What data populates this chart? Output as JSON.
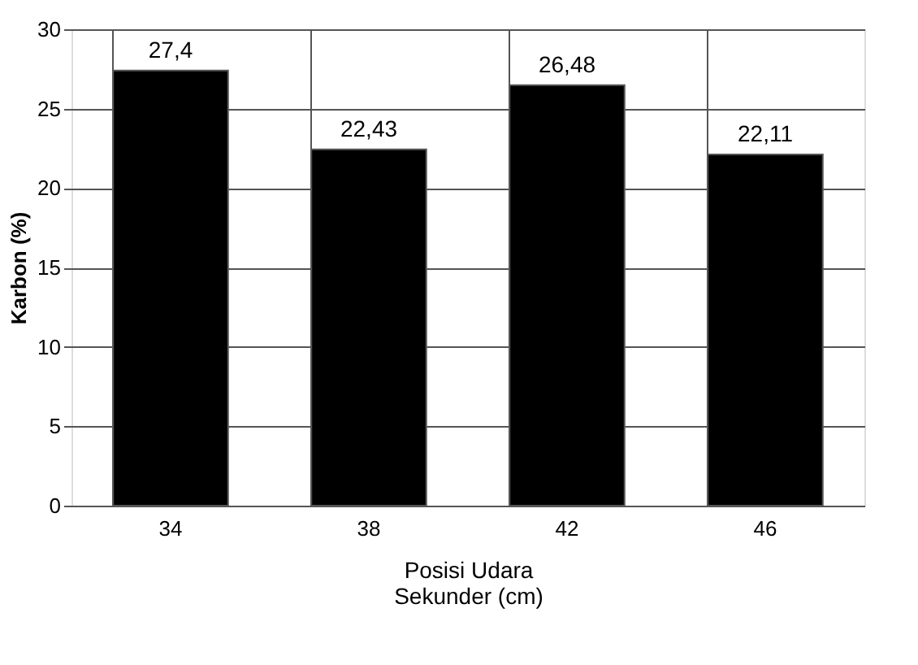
{
  "chart_data": {
    "type": "bar",
    "xlabel": "Posisi Udara Sekunder (cm)",
    "ylabel": "Karbon (%)",
    "categories": [
      "34",
      "38",
      "42",
      "46"
    ],
    "values": [
      27.4,
      22.43,
      26.48,
      22.11
    ],
    "value_labels": [
      "27,4",
      "22,43",
      "26,48",
      "22,11"
    ],
    "color": "#000000",
    "ylim": [
      0,
      30
    ],
    "yticks": [
      0,
      5,
      10,
      15,
      20,
      25,
      30
    ],
    "grid": true
  }
}
